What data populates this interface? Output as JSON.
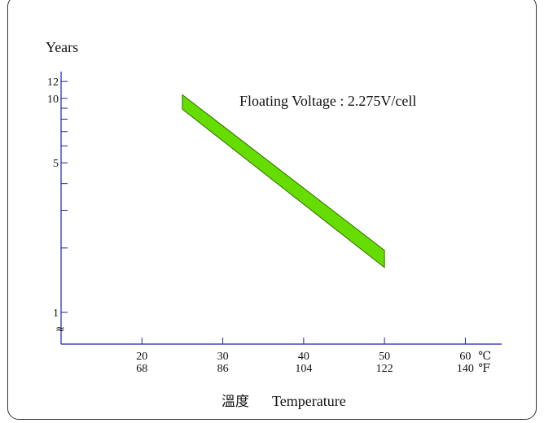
{
  "chart_data": {
    "type": "area",
    "ylabel": "Years",
    "xlabel_cn": "溫度",
    "xlabel": "Temperature",
    "y_scale": "log",
    "ylim": [
      0.83,
      15
    ],
    "xlim": [
      10,
      66
    ],
    "y_tick_labels": [
      {
        "value": 12,
        "label": "12"
      },
      {
        "value": 10,
        "label": "10"
      },
      {
        "value": 5,
        "label": "5"
      },
      {
        "value": 1,
        "label": "1"
      }
    ],
    "y_minor_ticks": [
      9,
      8,
      7,
      6,
      4,
      3,
      2
    ],
    "x_ticks": [
      {
        "c": 20,
        "f": "68"
      },
      {
        "c": 30,
        "f": "86"
      },
      {
        "c": 40,
        "f": "104"
      },
      {
        "c": 50,
        "f": "122"
      },
      {
        "c": 60,
        "f": "140"
      }
    ],
    "unit_c": "℃",
    "unit_f": "℉",
    "axis_break": "≈",
    "series": [
      {
        "name": "Floating Voltage : 2.275V/cell",
        "upper": [
          {
            "x": 25,
            "y": 10.4
          },
          {
            "x": 50,
            "y": 1.95
          }
        ],
        "lower": [
          {
            "x": 25,
            "y": 8.9
          },
          {
            "x": 50,
            "y": 1.62
          }
        ]
      }
    ],
    "colors": {
      "band_fill": "#66dd00",
      "band_stroke": "#2f7000",
      "axis": "#2222aa"
    },
    "grid": false
  }
}
